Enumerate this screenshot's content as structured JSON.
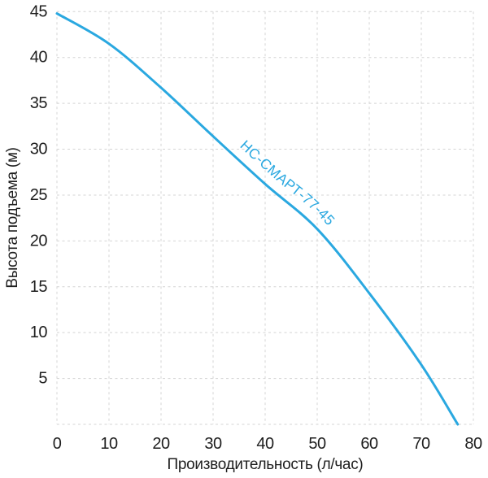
{
  "chart_data": {
    "type": "line",
    "title": "",
    "xlabel": "Производительность (л/час)",
    "ylabel": "Высота подъема (м)",
    "xlim": [
      0,
      80
    ],
    "ylim": [
      0,
      45
    ],
    "xticks": [
      0,
      10,
      20,
      30,
      40,
      50,
      60,
      70,
      80
    ],
    "yticks": [
      5,
      10,
      15,
      20,
      25,
      30,
      35,
      40,
      45
    ],
    "grid": "dashed",
    "legend_position": "on-curve",
    "series": [
      {
        "name": "НС-СМАРТ-77-45",
        "x": [
          0,
          10,
          20,
          30,
          40,
          50,
          60,
          70,
          77
        ],
        "y": [
          44.8,
          41.5,
          36.7,
          31.4,
          26.2,
          21.3,
          14.3,
          6.5,
          0
        ]
      }
    ]
  },
  "colors": {
    "background": "#ffffff",
    "grid": "#d4d4d4",
    "text": "#1e1e1e",
    "curve": "#2aa8e0"
  }
}
